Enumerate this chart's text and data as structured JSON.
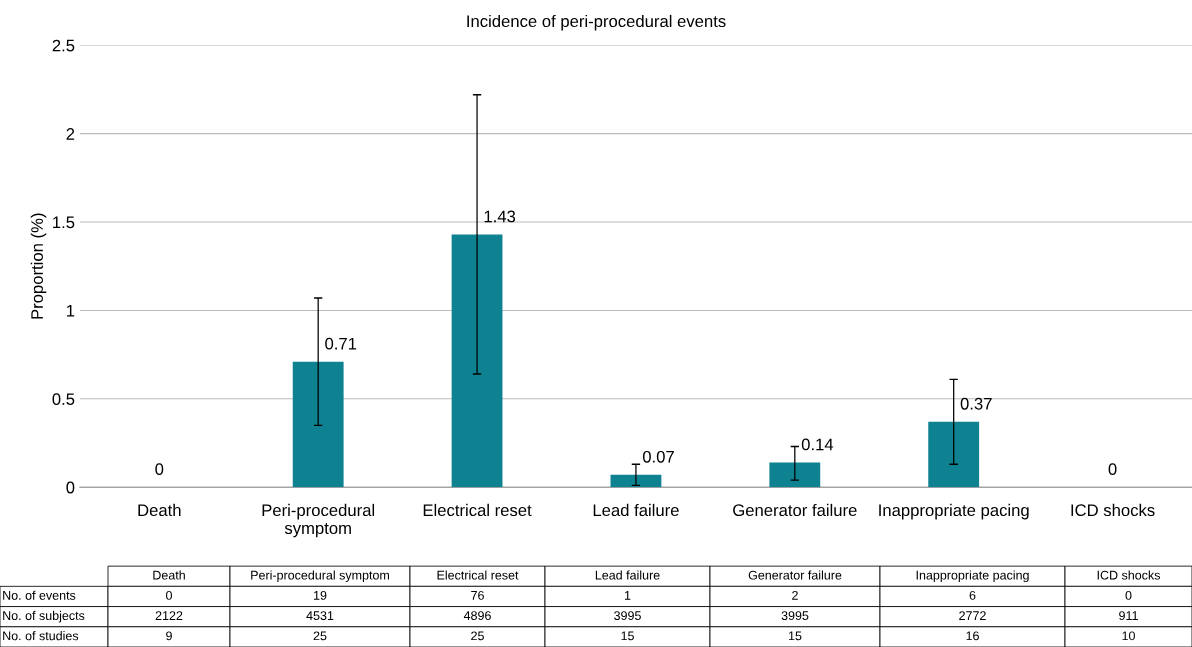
{
  "chart_data": {
    "type": "bar",
    "title": "Incidence of peri-procedural events",
    "ylabel": "Proportion (%)",
    "categories": [
      "Death",
      "Peri-procedural symptom",
      "Electrical reset",
      "Lead failure",
      "Generator failure",
      "Inappropriate pacing",
      "ICD shocks"
    ],
    "values": [
      0,
      0.71,
      1.43,
      0.07,
      0.14,
      0.37,
      0
    ],
    "errors": [
      null,
      [
        0.35,
        1.07
      ],
      [
        0.64,
        2.22
      ],
      [
        0.01,
        0.13
      ],
      [
        0.04,
        0.23
      ],
      [
        0.13,
        0.61
      ],
      null
    ],
    "color": "#0e8290",
    "data_labels": true,
    "grid": "y",
    "legend": false,
    "ylim": [
      0,
      2.5
    ],
    "yticks": [
      0,
      {
        "value": 0.5,
        "label": "0.5"
      },
      1,
      {
        "value": 1.5,
        "label": "1.5"
      },
      2,
      {
        "value": 2.5,
        "label": "2.5"
      }
    ],
    "annotations": [
      "No. of events",
      "0",
      "19",
      "76",
      "1",
      "2",
      "6",
      "0",
      "No. of subjects",
      "2122",
      "4531",
      "4896",
      "3995",
      "3995",
      "2772",
      "911",
      "No. of studies",
      "9",
      "25",
      "25",
      "15",
      "15",
      "16",
      "10"
    ]
  }
}
